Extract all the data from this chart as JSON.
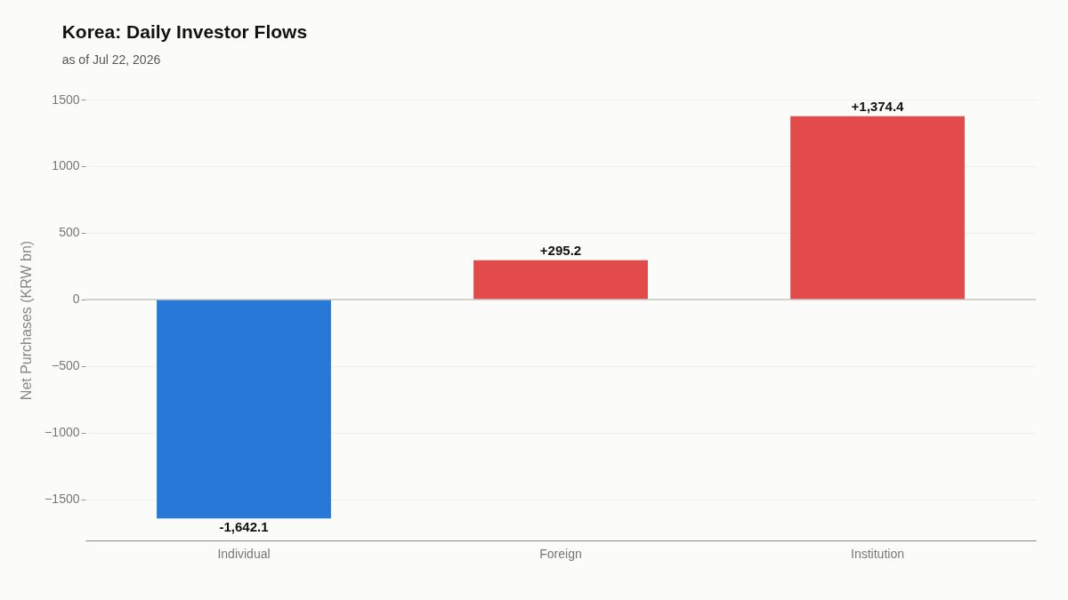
{
  "chart_data": {
    "type": "bar",
    "title": "Korea: Daily Investor Flows",
    "subtitle": "as of Jul 22, 2026",
    "ylabel": "Net Purchases (KRW bn)",
    "categories": [
      "Individual",
      "Foreign",
      "Institution"
    ],
    "values": [
      -1642.1,
      295.2,
      1374.4
    ],
    "colors": [
      "#2878d8",
      "#e34a4a",
      "#e34a4a"
    ],
    "value_labels": [
      "-1,642.1",
      "+295.2",
      "+1,374.4"
    ],
    "ylim": [
      -1807,
      1500
    ],
    "yticks": [
      {
        "value": -1500,
        "label": "−1500"
      },
      {
        "value": -1000,
        "label": "−1000"
      },
      {
        "value": -500,
        "label": "−500"
      },
      0,
      500,
      1000,
      1500
    ],
    "ref_lines": [
      {
        "axis": "y",
        "value": 0,
        "color": "#c8c8c0"
      }
    ],
    "grid": "y",
    "legend": false
  }
}
